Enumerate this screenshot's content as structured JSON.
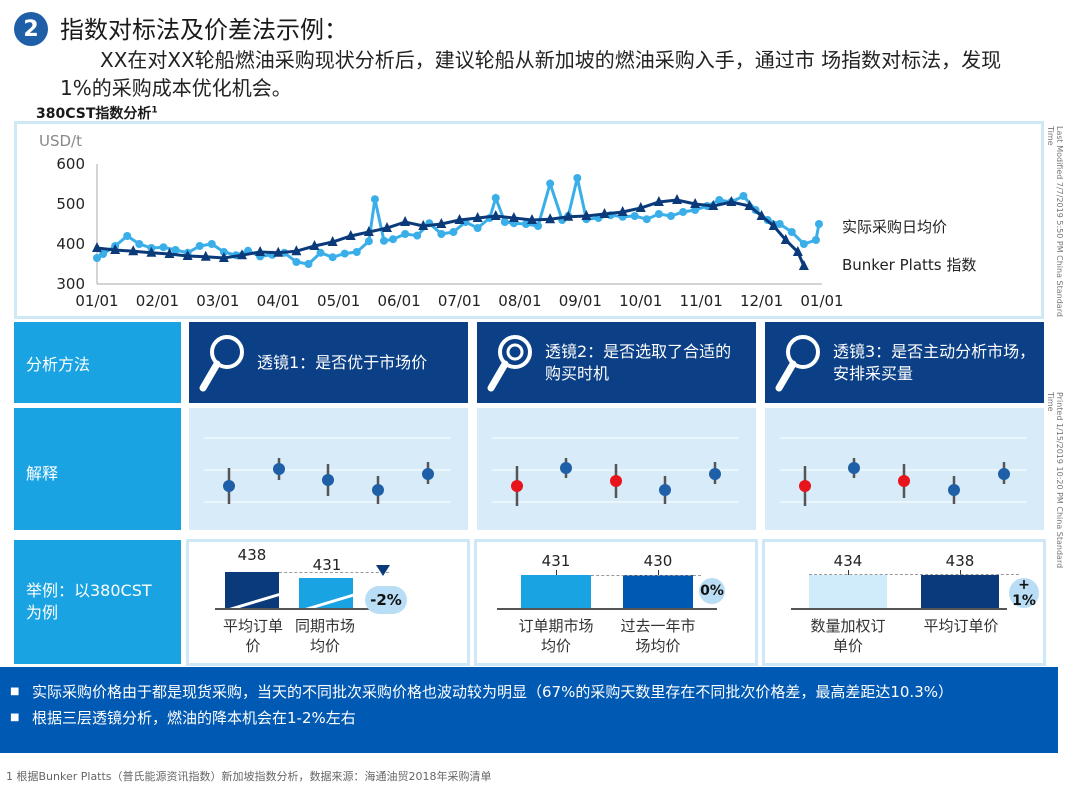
{
  "header": {
    "step": "2",
    "title": "指数对标法及价差法示例：",
    "subtitle": "XX在对XX轮船燃油采购现状分析后，建议轮船从新加坡的燃油采购入手，通过市 场指数对标法，发现1%的采购成本优化机会。"
  },
  "chart_title": "380CST指数分析",
  "chart_title_sup": "1",
  "chart_data": {
    "type": "line",
    "ylabel": "USD/t",
    "ylim": [
      300,
      600
    ],
    "yticks": [
      "600",
      "500",
      "400",
      "300"
    ],
    "xticks": [
      "01/01",
      "02/01",
      "03/01",
      "04/01",
      "05/01",
      "06/01",
      "07/01",
      "08/01",
      "09/01",
      "10/01",
      "11/01",
      "12/01",
      "01/01"
    ],
    "series": [
      {
        "name": "实际采购日均价",
        "color": "#3aaee8",
        "x": [
          0,
          0.1,
          0.3,
          0.5,
          0.7,
          0.9,
          1.1,
          1.3,
          1.5,
          1.7,
          1.9,
          2.1,
          2.3,
          2.5,
          2.7,
          2.9,
          3.1,
          3.3,
          3.5,
          3.7,
          3.9,
          4.1,
          4.3,
          4.5,
          4.6,
          4.75,
          4.9,
          5.1,
          5.3,
          5.5,
          5.7,
          5.9,
          6.1,
          6.3,
          6.5,
          6.6,
          6.75,
          6.9,
          7.1,
          7.3,
          7.5,
          7.7,
          7.8,
          7.95,
          8.1,
          8.3,
          8.5,
          8.7,
          8.9,
          9.1,
          9.3,
          9.5,
          9.7,
          9.9,
          10.1,
          10.3,
          10.5,
          10.7,
          10.9,
          11.1,
          11.3,
          11.5,
          11.7,
          11.9,
          11.95
        ],
        "values": [
          365,
          375,
          395,
          420,
          400,
          390,
          392,
          385,
          378,
          395,
          400,
          380,
          372,
          383,
          369,
          373,
          378,
          355,
          350,
          378,
          367,
          376,
          380,
          407,
          512,
          408,
          412,
          425,
          421,
          452,
          425,
          430,
          455,
          440,
          465,
          515,
          455,
          452,
          450,
          445,
          551,
          460,
          470,
          565,
          462,
          465,
          472,
          468,
          470,
          462,
          475,
          470,
          480,
          485,
          495,
          510,
          505,
          520,
          485,
          460,
          450,
          430,
          400,
          410,
          450
        ]
      },
      {
        "name": "Bunker Platts 指数",
        "color": "#0b3a7a",
        "x": [
          0,
          0.3,
          0.6,
          0.9,
          1.2,
          1.5,
          1.8,
          2.1,
          2.4,
          2.7,
          3.0,
          3.3,
          3.6,
          3.9,
          4.2,
          4.5,
          4.8,
          5.1,
          5.4,
          5.7,
          6.0,
          6.3,
          6.6,
          6.9,
          7.2,
          7.5,
          7.8,
          8.1,
          8.4,
          8.7,
          9.0,
          9.3,
          9.6,
          9.9,
          10.2,
          10.5,
          10.8,
          11.0,
          11.2,
          11.4,
          11.6,
          11.7
        ],
        "values": [
          390,
          385,
          382,
          378,
          375,
          370,
          368,
          365,
          372,
          380,
          378,
          382,
          395,
          405,
          420,
          430,
          440,
          455,
          445,
          450,
          460,
          465,
          470,
          465,
          460,
          462,
          468,
          470,
          475,
          480,
          490,
          505,
          510,
          500,
          495,
          505,
          495,
          470,
          445,
          410,
          380,
          345
        ]
      }
    ]
  },
  "legend": {
    "actual": "实际采购日均价",
    "index": "Bunker  Platts 指数"
  },
  "side_notes": {
    "modified": "Last Modified 7/7/2019 5:50 PM China Standard Time",
    "printed": "Printed 1/15/2019 10:20 PM China Standard Time"
  },
  "rows": {
    "method": "分析方法",
    "explain": "解释",
    "example": "举例：以380CST为例"
  },
  "lenses": [
    {
      "title": "透镜1：是否优于市场价"
    },
    {
      "title": "透镜2：是否选取了合适的购买时机"
    },
    {
      "title": "透镜3：是否主动分析市场，安排采买量"
    }
  ],
  "examples": [
    {
      "bar1_value": "438",
      "bar2_value": "431",
      "delta": "-2%",
      "bar1_label": "平均订单价",
      "bar2_label": "同期市场均价",
      "bar1_color": "#0b3a7a",
      "bar2_color": "#1aa3e3"
    },
    {
      "bar1_value": "431",
      "bar2_value": "430",
      "delta": "0%",
      "bar1_label": "订单期市场均价",
      "bar2_label": "过去一年市场均价",
      "bar1_color": "#1aa3e3",
      "bar2_color": "#0059b3"
    },
    {
      "bar1_value": "434",
      "bar2_value": "438",
      "delta": "+1%",
      "bar1_label": "数量加权订单价",
      "bar2_label": "平均订单价",
      "bar1_color": "#d0ebfa",
      "bar2_color": "#0b3a7a"
    }
  ],
  "bullets": [
    "实际采购价格由于都是现货采购，当天的不同批次采购价格也波动较为明显（67%的采购天数里存在不同批次价格差，最高差距达10.3%）",
    "根据三层透镜分析，燃油的降本机会在1-2%左右"
  ],
  "footnote": "1 根据Bunker Platts（普氏能源资讯指数）新加坡指数分析，数据来源：海通油贸2018年采购清单"
}
